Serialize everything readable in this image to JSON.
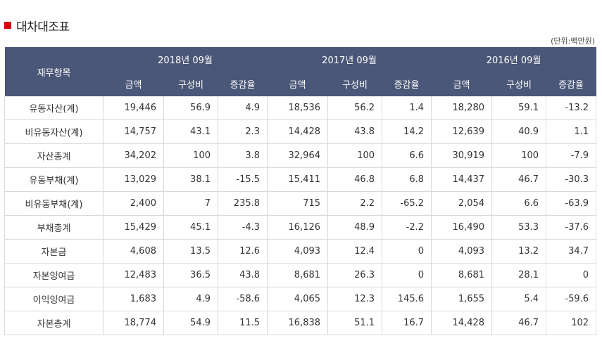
{
  "title": "대차대조표",
  "unit": "(단위:백만원)",
  "table": {
    "item_header": "재무항목",
    "periods": [
      "2018년 09월",
      "2017년 09월",
      "2016년 09월"
    ],
    "subheaders": [
      "금액",
      "구성비",
      "증감율"
    ],
    "rows": [
      {
        "label": "유동자산(계)",
        "values": [
          "19,446",
          "56.9",
          "4.9",
          "18,536",
          "56.2",
          "1.4",
          "18,280",
          "59.1",
          "-13.2"
        ]
      },
      {
        "label": "비유동자산(계)",
        "values": [
          "14,757",
          "43.1",
          "2.3",
          "14,428",
          "43.8",
          "14.2",
          "12,639",
          "40.9",
          "1.1"
        ]
      },
      {
        "label": "자산총계",
        "values": [
          "34,202",
          "100",
          "3.8",
          "32,964",
          "100",
          "6.6",
          "30,919",
          "100",
          "-7.9"
        ]
      },
      {
        "label": "유동부채(계)",
        "values": [
          "13,029",
          "38.1",
          "-15.5",
          "15,411",
          "46.8",
          "6.8",
          "14,437",
          "46.7",
          "-30.3"
        ]
      },
      {
        "label": "비유동부채(계)",
        "values": [
          "2,400",
          "7",
          "235.8",
          "715",
          "2.2",
          "-65.2",
          "2,054",
          "6.6",
          "-63.9"
        ]
      },
      {
        "label": "부채총계",
        "values": [
          "15,429",
          "45.1",
          "-4.3",
          "16,126",
          "48.9",
          "-2.2",
          "16,490",
          "53.3",
          "-37.6"
        ]
      },
      {
        "label": "자본금",
        "values": [
          "4,608",
          "13.5",
          "12.6",
          "4,093",
          "12.4",
          "0",
          "4,093",
          "13.2",
          "34.7"
        ]
      },
      {
        "label": "자본잉여금",
        "values": [
          "12,483",
          "36.5",
          "43.8",
          "8,681",
          "26.3",
          "0",
          "8,681",
          "28.1",
          "0"
        ]
      },
      {
        "label": "이익잉여금",
        "values": [
          "1,683",
          "4.9",
          "-58.6",
          "4,065",
          "12.3",
          "145.6",
          "1,655",
          "5.4",
          "-59.6"
        ]
      },
      {
        "label": "자본총계",
        "values": [
          "18,774",
          "54.9",
          "11.5",
          "16,838",
          "51.1",
          "16.7",
          "14,428",
          "46.7",
          "102"
        ]
      }
    ]
  },
  "colors": {
    "header_bg": "#4b5778",
    "accent": "#d7000f",
    "border": "#d9d9d9"
  }
}
